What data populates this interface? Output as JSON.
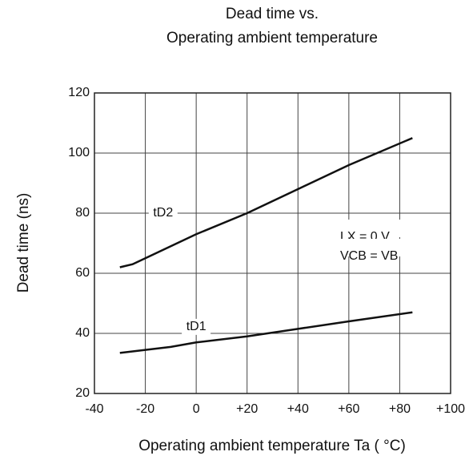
{
  "chart_data": {
    "type": "line",
    "title": [
      "Dead time vs.",
      "Operating ambient temperature"
    ],
    "x_label": "Operating ambient temperature Ta ( °C)",
    "y_label": "Dead time (ns)",
    "x": [
      -30,
      -25,
      -20,
      -10,
      0,
      20,
      40,
      60,
      85
    ],
    "series": [
      {
        "name": "tD2",
        "color": "#111111",
        "values": [
          62,
          63,
          65,
          69,
          73,
          80,
          88,
          96,
          105
        ]
      },
      {
        "name": "tD1",
        "color": "#111111",
        "values": [
          33.5,
          34,
          34.5,
          35.5,
          37,
          39,
          41.5,
          44,
          47
        ]
      }
    ],
    "annotations": [
      "LX = 0 V",
      "VCB = VB"
    ],
    "xlim": [
      -40,
      100
    ],
    "xticks": [
      -40,
      -20,
      0,
      {
        "value": 20,
        "label": "+20"
      },
      {
        "value": 40,
        "label": "+40"
      },
      {
        "value": 60,
        "label": "+60"
      },
      {
        "value": 80,
        "label": "+80"
      },
      {
        "value": 100,
        "label": "+100"
      }
    ],
    "ylim": [
      20,
      120
    ],
    "yticks": [
      20,
      40,
      60,
      80,
      100,
      120
    ],
    "grid": true
  }
}
